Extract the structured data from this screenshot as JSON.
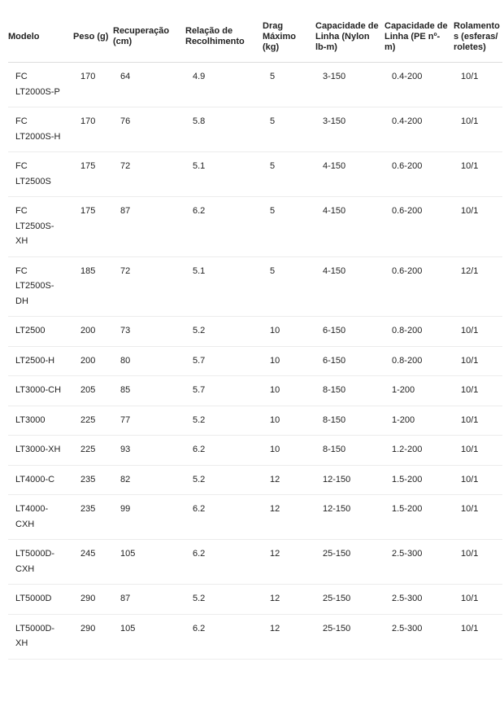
{
  "table": {
    "headers": [
      "Modelo",
      "Peso (g)",
      "Recuperação (cm)",
      "Relação de Recolhimento",
      "Drag Máximo (kg)",
      "Capacidade de Linha (Nylon lb-m)",
      "Capacidade de Linha (PE nº-m)",
      "Rolamentos (esferas/ roletes)"
    ],
    "rows": [
      [
        "FC LT2000S-P",
        "170",
        "64",
        "4.9",
        "5",
        "3-150",
        "0.4-200",
        "10/1"
      ],
      [
        "FC LT2000S-H",
        "170",
        "76",
        "5.8",
        "5",
        "3-150",
        "0.4-200",
        "10/1"
      ],
      [
        "FC LT2500S",
        "175",
        "72",
        "5.1",
        "5",
        "4-150",
        "0.6-200",
        "10/1"
      ],
      [
        "FC LT2500S-XH",
        "175",
        "87",
        "6.2",
        "5",
        "4-150",
        "0.6-200",
        "10/1"
      ],
      [
        "FC LT2500S-DH",
        "185",
        "72",
        "5.1",
        "5",
        "4-150",
        "0.6-200",
        "12/1"
      ],
      [
        "LT2500",
        "200",
        "73",
        "5.2",
        "10",
        "6-150",
        "0.8-200",
        "10/1"
      ],
      [
        "LT2500-H",
        "200",
        "80",
        "5.7",
        "10",
        "6-150",
        "0.8-200",
        "10/1"
      ],
      [
        "LT3000-CH",
        "205",
        "85",
        "5.7",
        "10",
        "8-150",
        "1-200",
        "10/1"
      ],
      [
        "LT3000",
        "225",
        "77",
        "5.2",
        "10",
        "8-150",
        "1-200",
        "10/1"
      ],
      [
        "LT3000-XH",
        "225",
        "93",
        "6.2",
        "10",
        "8-150",
        "1.2-200",
        "10/1"
      ],
      [
        "LT4000-C",
        "235",
        "82",
        "5.2",
        "12",
        "12-150",
        "1.5-200",
        "10/1"
      ],
      [
        "LT4000-CXH",
        "235",
        "99",
        "6.2",
        "12",
        "12-150",
        "1.5-200",
        "10/1"
      ],
      [
        "LT5000D-CXH",
        "245",
        "105",
        "6.2",
        "12",
        "25-150",
        "2.5-300",
        "10/1"
      ],
      [
        "LT5000D",
        "290",
        "87",
        "5.2",
        "12",
        "25-150",
        "2.5-300",
        "10/1"
      ],
      [
        "LT5000D-XH",
        "290",
        "105",
        "6.2",
        "12",
        "25-150",
        "2.5-300",
        "10/1"
      ]
    ]
  }
}
